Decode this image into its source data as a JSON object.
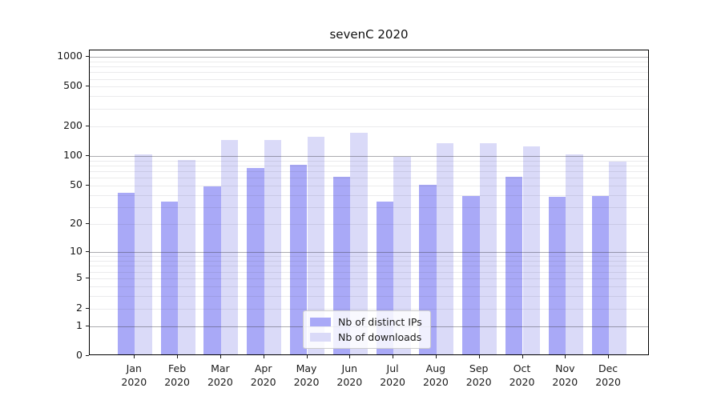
{
  "title": "sevenC 2020",
  "chart_data": {
    "type": "bar",
    "title": "sevenC 2020",
    "yscale": "log1p",
    "ylim": [
      0,
      1160
    ],
    "yticks": [
      0,
      1,
      2,
      5,
      10,
      20,
      50,
      100,
      200,
      500,
      1000
    ],
    "grid": "both",
    "legend_position": "lower-center-inside",
    "categories": [
      "Jan 2020",
      "Feb 2020",
      "Mar 2020",
      "Apr 2020",
      "May 2020",
      "Jun 2020",
      "Jul 2020",
      "Aug 2020",
      "Sep 2020",
      "Oct 2020",
      "Nov 2020",
      "Dec 2020"
    ],
    "series": [
      {
        "name": "Nb of distinct IPs",
        "color": "#a9a9f7",
        "values": [
          41,
          33,
          47,
          73,
          79,
          59,
          33,
          49,
          38,
          59,
          37,
          38
        ]
      },
      {
        "name": "Nb of downloads",
        "color": "#dadaf8",
        "values": [
          101,
          88,
          139,
          141,
          152,
          166,
          95,
          129,
          129,
          121,
          100,
          84
        ]
      }
    ]
  }
}
